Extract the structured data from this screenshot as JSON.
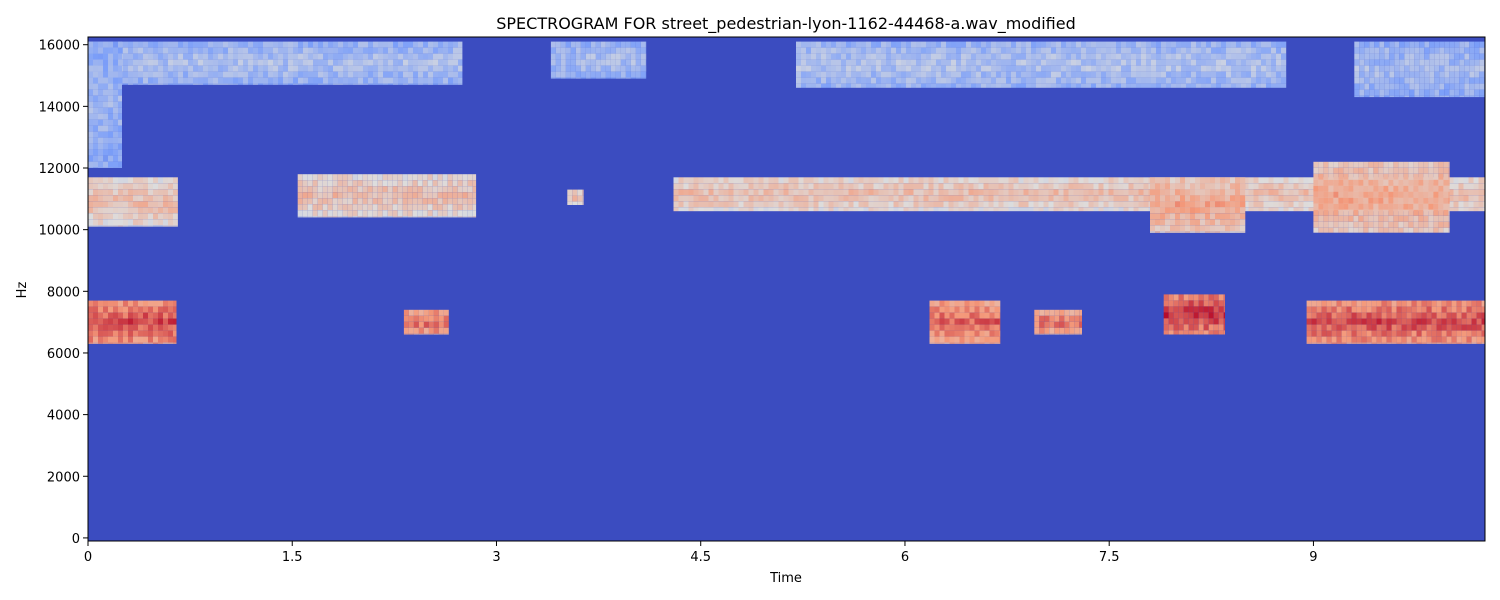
{
  "chart_data": {
    "type": "heatmap",
    "title": "SPECTROGRAM FOR street_pedestrian-lyon-1162-44468-a.wav_modified",
    "xlabel": "Time",
    "ylabel": "Hz",
    "xlim": [
      0,
      10.26
    ],
    "ylim": [
      -100,
      16250
    ],
    "x_ticks": [
      0,
      1.5,
      3,
      4.5,
      6,
      7.5,
      9
    ],
    "x_tick_labels": [
      "0",
      "1.5",
      "3",
      "4.5",
      "6",
      "7.5",
      "9"
    ],
    "y_ticks": [
      0,
      2000,
      4000,
      6000,
      8000,
      10000,
      12000,
      14000,
      16000
    ],
    "y_tick_labels": [
      "0",
      "2000",
      "4000",
      "6000",
      "8000",
      "10000",
      "12000",
      "14000",
      "16000"
    ],
    "colormap": "coolwarm",
    "background_level": 0.0,
    "bands": [
      {
        "name": "upper band 14.7–16.1 kHz",
        "regions": [
          {
            "t0": 0.0,
            "t1": 2.75,
            "f0": 14700,
            "f1": 16100,
            "level": 0.33
          },
          {
            "t0": 0.0,
            "t1": 0.25,
            "f0": 12000,
            "f1": 16100,
            "level": 0.3
          },
          {
            "t0": 3.4,
            "t1": 4.1,
            "f0": 14900,
            "f1": 16100,
            "level": 0.33
          },
          {
            "t0": 5.2,
            "t1": 8.8,
            "f0": 14600,
            "f1": 16100,
            "level": 0.34
          },
          {
            "t0": 9.3,
            "t1": 10.26,
            "f0": 14300,
            "f1": 16100,
            "level": 0.32
          }
        ]
      },
      {
        "name": "middle band 10–12 kHz",
        "regions": [
          {
            "t0": 0.0,
            "t1": 0.66,
            "f0": 10100,
            "f1": 11700,
            "level": 0.55
          },
          {
            "t0": 1.54,
            "t1": 2.85,
            "f0": 10400,
            "f1": 11800,
            "level": 0.55
          },
          {
            "t0": 3.52,
            "t1": 3.64,
            "f0": 10800,
            "f1": 11300,
            "level": 0.55
          },
          {
            "t0": 4.3,
            "t1": 10.26,
            "f0": 10600,
            "f1": 11700,
            "level": 0.55
          },
          {
            "t0": 7.8,
            "t1": 8.5,
            "f0": 9900,
            "f1": 11700,
            "level": 0.62
          },
          {
            "t0": 9.0,
            "t1": 10.0,
            "f0": 9900,
            "f1": 12200,
            "level": 0.62
          }
        ]
      },
      {
        "name": "lower band 6–8 kHz",
        "regions": [
          {
            "t0": 0.0,
            "t1": 0.65,
            "f0": 6300,
            "f1": 7700,
            "level": 0.78
          },
          {
            "t0": 2.32,
            "t1": 2.65,
            "f0": 6600,
            "f1": 7400,
            "level": 0.74
          },
          {
            "t0": 6.18,
            "t1": 6.7,
            "f0": 6300,
            "f1": 7700,
            "level": 0.74
          },
          {
            "t0": 6.95,
            "t1": 7.3,
            "f0": 6600,
            "f1": 7400,
            "level": 0.72
          },
          {
            "t0": 7.9,
            "t1": 8.35,
            "f0": 6600,
            "f1": 7900,
            "level": 0.82
          },
          {
            "t0": 8.95,
            "t1": 10.26,
            "f0": 6300,
            "f1": 7700,
            "level": 0.78
          }
        ]
      }
    ]
  }
}
